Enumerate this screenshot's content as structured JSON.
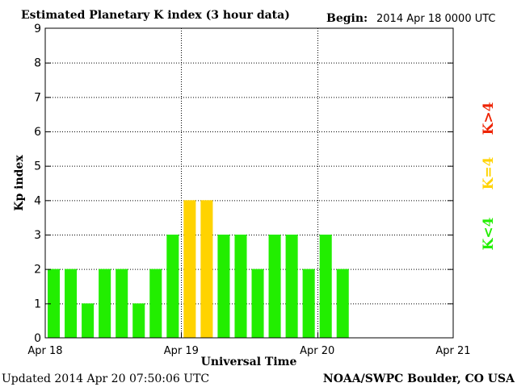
{
  "chart_data": {
    "type": "bar",
    "title": "Estimated Planetary K index (3 hour data)",
    "begin_label": "Begin:",
    "begin_value": "2014 Apr 18 0000 UTC",
    "ylabel": "Kp index",
    "xlabel": "Universal Time",
    "ylim": [
      0,
      9
    ],
    "yticks": [
      "0",
      "1",
      "2",
      "3",
      "4",
      "5",
      "6",
      "7",
      "8",
      "9"
    ],
    "xticks": [
      "Apr 18",
      "Apr 19",
      "Apr 20",
      "Apr 21"
    ],
    "grid": true,
    "bar_interval_hours": 3,
    "values": [
      2,
      2,
      1,
      2,
      2,
      1,
      2,
      3,
      4,
      4,
      3,
      3,
      2,
      3,
      3,
      2,
      3,
      2
    ],
    "legend": {
      "placement": "right",
      "below": {
        "label": "K<4",
        "color": "#22ee00"
      },
      "equal": {
        "label": "K=4",
        "color": "#ffd300"
      },
      "above": {
        "label": "K>4",
        "color": "#ee2200"
      }
    },
    "updated": "Updated 2014 Apr 20 07:50:06 UTC",
    "credit": "NOAA/SWPC Boulder, CO USA"
  }
}
